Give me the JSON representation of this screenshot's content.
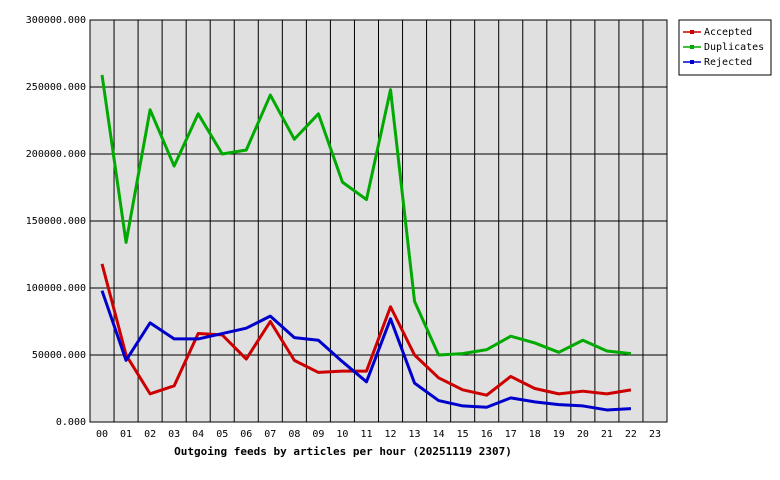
{
  "chart_data": {
    "type": "line",
    "x_label": "Outgoing feeds by articles per hour (20251119 2307)",
    "categories": [
      "00",
      "01",
      "02",
      "03",
      "04",
      "05",
      "06",
      "07",
      "08",
      "09",
      "10",
      "11",
      "12",
      "13",
      "14",
      "15",
      "16",
      "17",
      "18",
      "19",
      "20",
      "21",
      "22",
      "23"
    ],
    "series": [
      {
        "name": "Accepted",
        "color": "#cc0000",
        "values": [
          118000,
          50000,
          21000,
          27000,
          66000,
          65000,
          47000,
          75000,
          46000,
          37000,
          38000,
          38000,
          86000,
          50000,
          33000,
          24000,
          20000,
          34000,
          25000,
          21000,
          23000,
          21000,
          24000,
          null
        ]
      },
      {
        "name": "Duplicates",
        "color": "#00aa00",
        "values": [
          259000,
          134000,
          233000,
          191000,
          230000,
          200000,
          203000,
          244000,
          211000,
          230000,
          179000,
          166000,
          248000,
          90000,
          50000,
          51000,
          54000,
          64000,
          59000,
          52000,
          61000,
          53000,
          51000,
          null
        ]
      },
      {
        "name": "Rejected",
        "color": "#0000cc",
        "values": [
          98000,
          46000,
          74000,
          62000,
          62000,
          66000,
          70000,
          79000,
          63000,
          61000,
          45000,
          30000,
          77000,
          29000,
          16000,
          12000,
          11000,
          18000,
          15000,
          13000,
          12000,
          9000,
          10000,
          null
        ]
      }
    ],
    "ylim": [
      0,
      300000
    ],
    "yticks": [
      {
        "value": 0,
        "label": "0.000"
      },
      {
        "value": 50000,
        "label": "50000.000"
      },
      {
        "value": 100000,
        "label": "100000.000"
      },
      {
        "value": 150000,
        "label": "150000.000"
      },
      {
        "value": 200000,
        "label": "200000.000"
      },
      {
        "value": 250000,
        "label": "250000.000"
      },
      {
        "value": 300000,
        "label": "300000.000"
      }
    ],
    "grid": true,
    "legend": "upper right"
  }
}
